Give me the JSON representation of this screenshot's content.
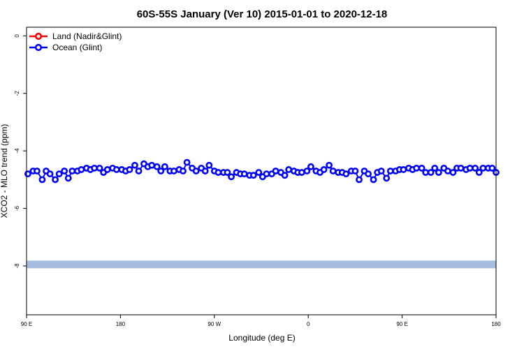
{
  "chart_data": {
    "type": "line",
    "title": "60S-55S January (Ver 10)   2015-01-01 to 2020-12-18",
    "xlabel": "Longitude (deg E)",
    "ylabel": "XCO2 - MLO trend (ppm)",
    "xlim": [
      90,
      450
    ],
    "ylim": [
      -9.7,
      0.3
    ],
    "x_ticks": [
      {
        "value": 90,
        "label": "90 E"
      },
      {
        "value": 162,
        "label": "180"
      },
      {
        "value": 234,
        "label": "90 W"
      },
      {
        "value": 306,
        "label": "0"
      },
      {
        "value": 378,
        "label": "90 E"
      },
      {
        "value": 450,
        "label": "180"
      }
    ],
    "y_ticks": [
      {
        "value": 0,
        "label": "0"
      },
      {
        "value": -2,
        "label": "-2"
      },
      {
        "value": -4,
        "label": "-4"
      },
      {
        "value": -6,
        "label": "-6"
      },
      {
        "value": -8,
        "label": "-8"
      }
    ],
    "legend_position": "top-left",
    "series": [
      {
        "name": "Land (Nadir&Glint)",
        "color": "#ff0000",
        "x": [],
        "y": []
      },
      {
        "name": "Ocean (Glint)",
        "color": "#0000ff",
        "x": [
          91,
          95,
          98,
          102,
          105,
          108,
          112,
          115,
          119,
          122,
          125,
          129,
          132,
          136,
          139,
          142,
          146,
          149,
          152,
          156,
          159,
          163,
          166,
          169,
          173,
          176,
          180,
          183,
          186,
          190,
          193,
          196,
          200,
          203,
          207,
          210,
          213,
          217,
          220,
          224,
          227,
          230,
          234,
          237,
          241,
          244,
          247,
          251,
          254,
          257,
          261,
          264,
          268,
          271,
          274,
          278,
          281,
          285,
          288,
          291,
          295,
          298,
          301,
          305,
          308,
          312,
          315,
          318,
          322,
          325,
          329,
          332,
          335,
          339,
          342,
          345,
          349,
          352,
          356,
          359,
          362,
          366,
          369,
          373,
          376,
          379,
          383,
          386,
          389,
          393,
          396,
          400,
          403,
          406,
          410,
          413,
          417,
          420,
          423,
          427,
          430,
          434,
          437,
          440,
          444,
          447,
          450
        ],
        "y": [
          -4.8,
          -4.7,
          -4.7,
          -5.0,
          -4.7,
          -4.8,
          -5.0,
          -4.8,
          -4.7,
          -4.95,
          -4.7,
          -4.7,
          -4.65,
          -4.6,
          -4.65,
          -4.6,
          -4.6,
          -4.75,
          -4.65,
          -4.6,
          -4.65,
          -4.65,
          -4.7,
          -4.65,
          -4.5,
          -4.7,
          -4.45,
          -4.55,
          -4.5,
          -4.55,
          -4.7,
          -4.55,
          -4.7,
          -4.7,
          -4.65,
          -4.7,
          -4.4,
          -4.6,
          -4.7,
          -4.6,
          -4.7,
          -4.5,
          -4.7,
          -4.75,
          -4.75,
          -4.75,
          -4.9,
          -4.75,
          -4.8,
          -4.8,
          -4.85,
          -4.85,
          -4.75,
          -4.9,
          -4.8,
          -4.8,
          -4.7,
          -4.75,
          -4.85,
          -4.65,
          -4.7,
          -4.75,
          -4.75,
          -4.7,
          -4.55,
          -4.7,
          -4.75,
          -4.65,
          -4.5,
          -4.7,
          -4.75,
          -4.75,
          -4.8,
          -4.7,
          -4.7,
          -5.0,
          -4.7,
          -4.8,
          -5.0,
          -4.75,
          -4.7,
          -4.95,
          -4.7,
          -4.7,
          -4.65,
          -4.65,
          -4.6,
          -4.65,
          -4.6,
          -4.6,
          -4.75,
          -4.75,
          -4.6,
          -4.75,
          -4.6,
          -4.7,
          -4.75,
          -4.6,
          -4.6,
          -4.65,
          -4.6,
          -4.6,
          -4.75,
          -4.6,
          -4.6,
          -4.6,
          -4.75
        ]
      },
      {
        "name": "",
        "color": "#a7bde0",
        "x": [
          90,
          450
        ],
        "y": [
          -7.95,
          -7.95
        ]
      }
    ]
  }
}
